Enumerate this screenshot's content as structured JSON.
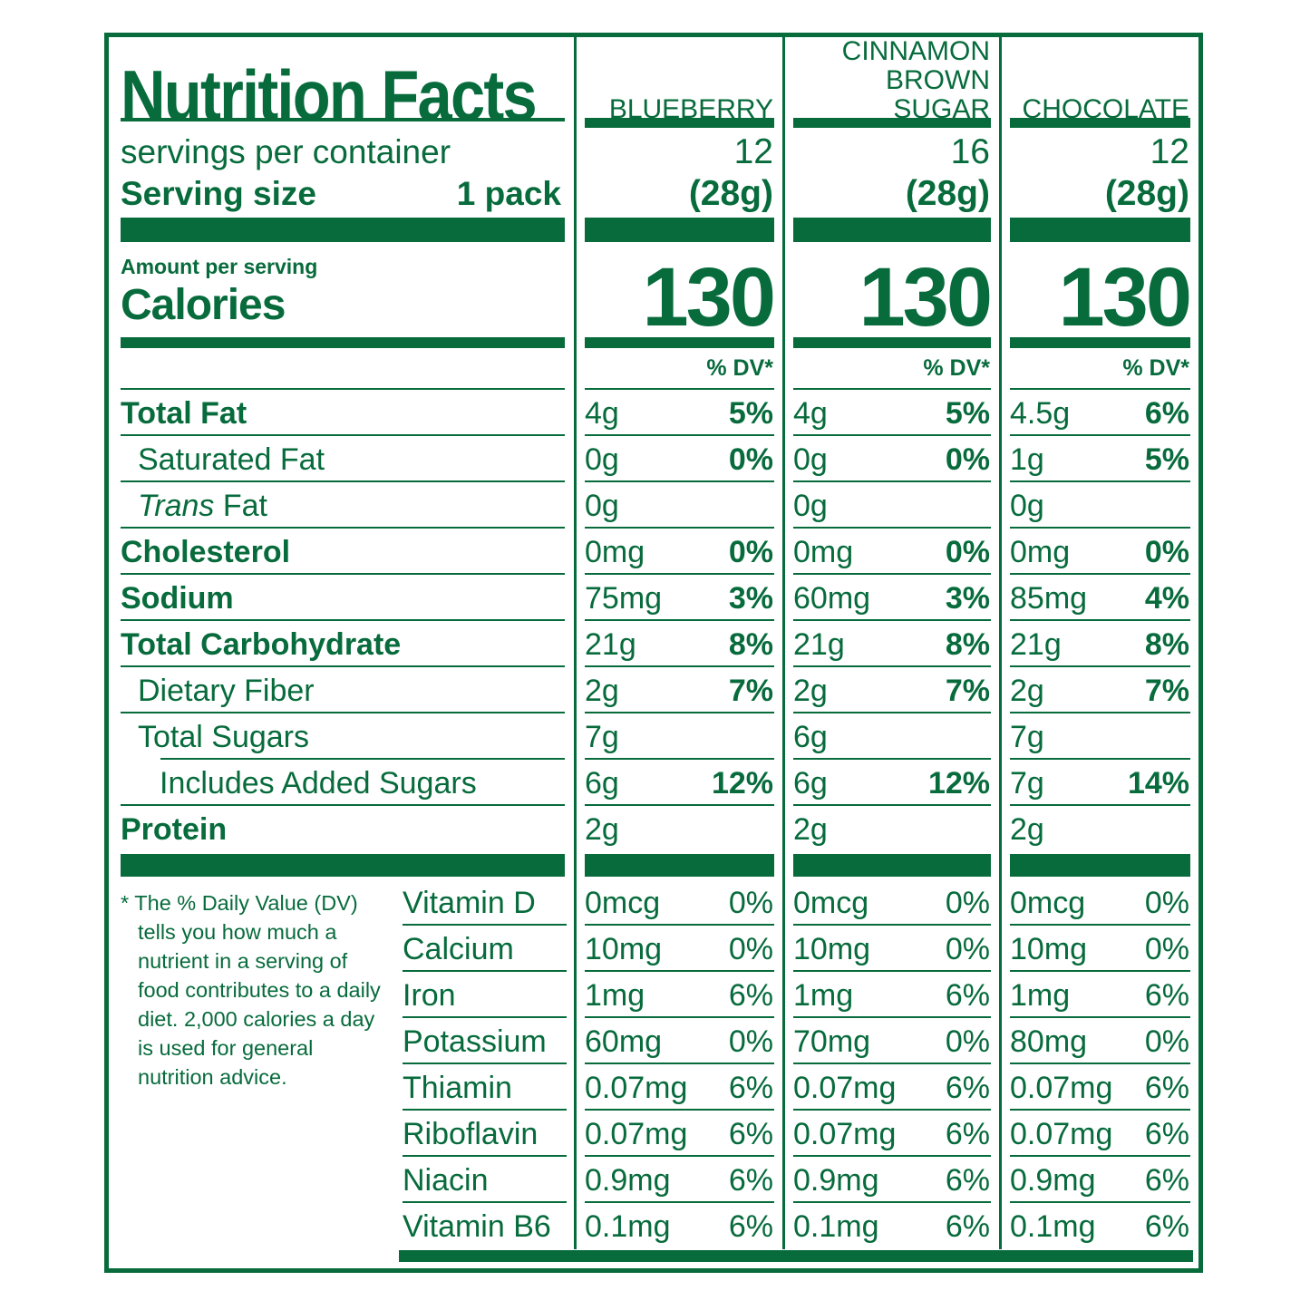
{
  "colors": {
    "green": "#076B3C",
    "background": "#FFFFFF"
  },
  "header": {
    "title": "Nutrition Facts",
    "servings_per_container_label": "servings per container",
    "serving_size_label": "Serving size",
    "serving_size_value": "1 pack",
    "amount_per_serving_label": "Amount per serving",
    "calories_label": "Calories",
    "daily_value_header": "% DV*"
  },
  "flavors": [
    {
      "name": "BLUEBERRY",
      "line1": "BLUEBERRY",
      "line2": "",
      "servings_per_container": "12",
      "serving_size_weight": "(28g)",
      "calories": "130"
    },
    {
      "name": "CINNAMON BROWN SUGAR",
      "line1": "CINNAMON",
      "line2": "BROWN SUGAR",
      "servings_per_container": "16",
      "serving_size_weight": "(28g)",
      "calories": "130"
    },
    {
      "name": "CHOCOLATE",
      "line1": "CHOCOLATE",
      "line2": "",
      "servings_per_container": "12",
      "serving_size_weight": "(28g)",
      "calories": "130"
    }
  ],
  "nutrients": [
    {
      "label": "Total Fat",
      "bold": true,
      "indent": 0,
      "rule": "full",
      "values": [
        {
          "amount": "4g",
          "dv": "5%"
        },
        {
          "amount": "4g",
          "dv": "5%"
        },
        {
          "amount": "4.5g",
          "dv": "6%"
        }
      ]
    },
    {
      "label": "Saturated Fat",
      "bold": false,
      "indent": 1,
      "rule": "full",
      "values": [
        {
          "amount": "0g",
          "dv": "0%"
        },
        {
          "amount": "0g",
          "dv": "0%"
        },
        {
          "amount": "1g",
          "dv": "5%"
        }
      ]
    },
    {
      "label_italic": "Trans",
      "label": " Fat",
      "bold": false,
      "indent": 1,
      "rule": "full",
      "values": [
        {
          "amount": "0g",
          "dv": ""
        },
        {
          "amount": "0g",
          "dv": ""
        },
        {
          "amount": "0g",
          "dv": ""
        }
      ]
    },
    {
      "label": "Cholesterol",
      "bold": true,
      "indent": 0,
      "rule": "full",
      "values": [
        {
          "amount": "0mg",
          "dv": "0%"
        },
        {
          "amount": "0mg",
          "dv": "0%"
        },
        {
          "amount": "0mg",
          "dv": "0%"
        }
      ]
    },
    {
      "label": "Sodium",
      "bold": true,
      "indent": 0,
      "rule": "full",
      "values": [
        {
          "amount": "75mg",
          "dv": "3%"
        },
        {
          "amount": "60mg",
          "dv": "3%"
        },
        {
          "amount": "85mg",
          "dv": "4%"
        }
      ]
    },
    {
      "label": "Total Carbohydrate",
      "bold": true,
      "indent": 0,
      "rule": "full",
      "values": [
        {
          "amount": "21g",
          "dv": "8%"
        },
        {
          "amount": "21g",
          "dv": "8%"
        },
        {
          "amount": "21g",
          "dv": "8%"
        }
      ]
    },
    {
      "label": "Dietary Fiber",
      "bold": false,
      "indent": 1,
      "rule": "full",
      "values": [
        {
          "amount": "2g",
          "dv": "7%"
        },
        {
          "amount": "2g",
          "dv": "7%"
        },
        {
          "amount": "2g",
          "dv": "7%"
        }
      ]
    },
    {
      "label": "Total Sugars",
      "bold": false,
      "indent": 1,
      "rule": "indent",
      "values": [
        {
          "amount": "7g",
          "dv": ""
        },
        {
          "amount": "6g",
          "dv": ""
        },
        {
          "amount": "7g",
          "dv": ""
        }
      ]
    },
    {
      "label": "Includes Added Sugars",
      "bold": false,
      "indent": 2,
      "rule": "full",
      "values": [
        {
          "amount": "6g",
          "dv": "12%"
        },
        {
          "amount": "6g",
          "dv": "12%"
        },
        {
          "amount": "7g",
          "dv": "14%"
        }
      ]
    },
    {
      "label": "Protein",
      "bold": true,
      "indent": 0,
      "rule": "none",
      "values": [
        {
          "amount": "2g",
          "dv": ""
        },
        {
          "amount": "2g",
          "dv": ""
        },
        {
          "amount": "2g",
          "dv": ""
        }
      ]
    }
  ],
  "vitamins": [
    {
      "label": "Vitamin D",
      "values": [
        {
          "amount": "0mcg",
          "dv": "0%"
        },
        {
          "amount": "0mcg",
          "dv": "0%"
        },
        {
          "amount": "0mcg",
          "dv": "0%"
        }
      ]
    },
    {
      "label": "Calcium",
      "values": [
        {
          "amount": "10mg",
          "dv": "0%"
        },
        {
          "amount": "10mg",
          "dv": "0%"
        },
        {
          "amount": "10mg",
          "dv": "0%"
        }
      ]
    },
    {
      "label": "Iron",
      "values": [
        {
          "amount": "1mg",
          "dv": "6%"
        },
        {
          "amount": "1mg",
          "dv": "6%"
        },
        {
          "amount": "1mg",
          "dv": "6%"
        }
      ]
    },
    {
      "label": "Potassium",
      "values": [
        {
          "amount": "60mg",
          "dv": "0%"
        },
        {
          "amount": "70mg",
          "dv": "0%"
        },
        {
          "amount": "80mg",
          "dv": "0%"
        }
      ]
    },
    {
      "label": "Thiamin",
      "values": [
        {
          "amount": "0.07mg",
          "dv": "6%"
        },
        {
          "amount": "0.07mg",
          "dv": "6%"
        },
        {
          "amount": "0.07mg",
          "dv": "6%"
        }
      ]
    },
    {
      "label": "Riboflavin",
      "values": [
        {
          "amount": "0.07mg",
          "dv": "6%"
        },
        {
          "amount": "0.07mg",
          "dv": "6%"
        },
        {
          "amount": "0.07mg",
          "dv": "6%"
        }
      ]
    },
    {
      "label": "Niacin",
      "values": [
        {
          "amount": "0.9mg",
          "dv": "6%"
        },
        {
          "amount": "0.9mg",
          "dv": "6%"
        },
        {
          "amount": "0.9mg",
          "dv": "6%"
        }
      ]
    },
    {
      "label": "Vitamin B6",
      "values": [
        {
          "amount": "0.1mg",
          "dv": "6%"
        },
        {
          "amount": "0.1mg",
          "dv": "6%"
        },
        {
          "amount": "0.1mg",
          "dv": "6%"
        }
      ]
    }
  ],
  "footnote": {
    "marker": "*",
    "text": "The % Daily Value (DV) tells you how much a nutrient in a serving of food contributes to a daily diet. 2,000 calories a day is used for general nutrition advice."
  }
}
